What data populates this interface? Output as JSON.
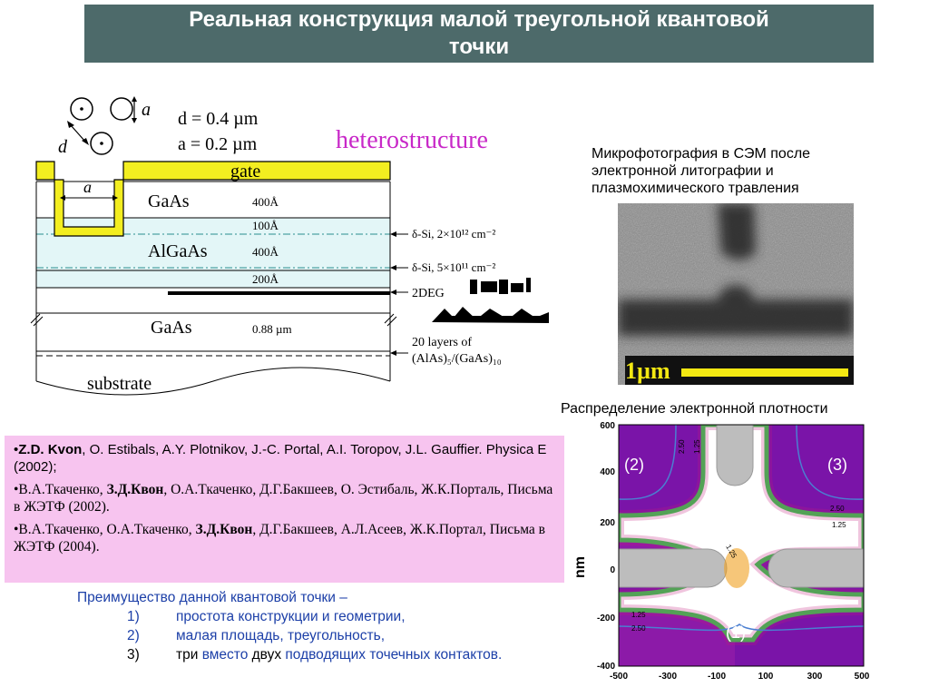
{
  "slide": {
    "title": "Реальная конструкция малой треугольной квантовой\nточки"
  },
  "heterostructure": {
    "heading": "heterostructure",
    "d_param": "d = 0.4 µm",
    "a_param": "a = 0.2 µm",
    "a_marker": "a",
    "d_marker": "d",
    "gate": "gate",
    "gate_a": "a",
    "layers": [
      {
        "name": "GaAs",
        "thickness": "400Å"
      },
      {
        "name": "",
        "thickness": "100Å"
      },
      {
        "name": "AlGaAs",
        "thickness": "400Å"
      },
      {
        "name": "",
        "thickness": "200Å"
      },
      {
        "name": "GaAs",
        "thickness": "0.88 µm"
      }
    ],
    "substrate": "substrate",
    "annotations": {
      "dsi1": "δ-Si, 2×10¹² cm⁻²",
      "dsi2": "δ-Si, 5×10¹¹ cm⁻²",
      "deg": "2DEG",
      "superlattice_1": "20 layers of",
      "superlattice_2": "(AlAs)₅/(GaAs)₁₀"
    }
  },
  "sem": {
    "caption": "Микрофотография в СЭМ после электронной литографии и плазмохимического травления",
    "scale": "1µm"
  },
  "density": {
    "caption": "Распределение электронной плотности",
    "ylabel": "nm",
    "xticks": [
      "-500",
      "-300",
      "-100",
      "100",
      "300",
      "500"
    ],
    "yticks": [
      "600",
      "400",
      "200",
      "0",
      "-200",
      "-400"
    ],
    "regions": [
      "(2)",
      "(3)",
      "(1)"
    ],
    "contour_labels": [
      "2.50",
      "1.25",
      "2.50",
      "1.25",
      "1.25",
      "1.25",
      "2.50"
    ],
    "colors": {
      "purple": "#7a14a8",
      "magenta": "#c2177a",
      "green": "#2ed14a",
      "gray": "#bdbdbd",
      "blue": "#4b7fd1"
    }
  },
  "references": [
    {
      "prefix": "•",
      "bold": "Z.D. Kvon",
      "rest": ",  O. Estibals, A.Y. Plotnikov, J.-C. Portal,  A.I. Toropov, J.L. Gauffier.  Physica E (2002);"
    },
    {
      "prefix": "•В.А.Ткаченко, ",
      "bold": "З.Д.Квон",
      "rest": ",  О.А.Ткаченко,  Д.Г.Бакшеев, О. Эстибаль, Ж.К.Порталь, Письма в ЖЭТФ (2002)."
    },
    {
      "prefix": "•В.А.Ткаченко, О.А.Ткаченко, ",
      "bold": "З.Д.Квон",
      "rest": ", Д.Г.Бакшеев, А.Л.Асеев, Ж.К.Портал, Письма в ЖЭТФ (2004)."
    }
  ],
  "advantages": {
    "heading": "Преимущество данной квантовой точки –",
    "items": [
      {
        "num": "1)",
        "text": "простота конструкции и геометрии,"
      },
      {
        "num": "2)",
        "text": "малая площадь, треугольность,"
      }
    ],
    "item3": {
      "num": "3)",
      "w1": "три",
      "w2": " вместо ",
      "w3": "двух",
      "w4": " подводящих  точечных контактов."
    }
  }
}
